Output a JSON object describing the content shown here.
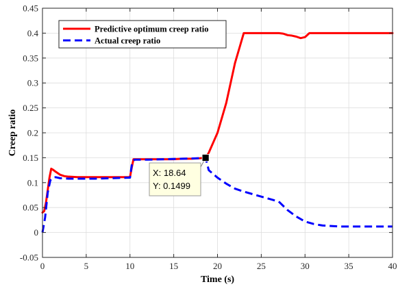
{
  "chart_data": {
    "type": "line",
    "title": "",
    "xlabel": "Time (s)",
    "ylabel": "Creep ratio",
    "xlim": [
      0,
      40
    ],
    "ylim": [
      -0.05,
      0.45
    ],
    "xticks": [
      "0",
      "5",
      "10",
      "15",
      "20",
      "25",
      "30",
      "35",
      "40"
    ],
    "xtick_values": [
      0,
      5,
      10,
      15,
      20,
      25,
      30,
      35,
      40
    ],
    "yticks": [
      "-0.05",
      "0",
      "0.05",
      "0.1",
      "0.15",
      "0.2",
      "0.25",
      "0.3",
      "0.35",
      "0.4",
      "0.45"
    ],
    "ytick_values": [
      -0.05,
      0,
      0.05,
      0.1,
      0.15,
      0.2,
      0.25,
      0.3,
      0.35,
      0.4,
      0.45
    ],
    "grid": true,
    "legend_position": "top-left",
    "series": [
      {
        "name": "Predictive optimum creep ratio",
        "color": "#ff0000",
        "style": "solid",
        "x": [
          0,
          0.2,
          0.4,
          0.6,
          0.8,
          1.0,
          1.2,
          1.5,
          2.0,
          2.5,
          3.0,
          4.0,
          5.0,
          6.0,
          8.0,
          9.5,
          10.0,
          10.2,
          10.4,
          11.0,
          12.0,
          13.0,
          14.0,
          15.0,
          16.0,
          17.0,
          18.0,
          18.64,
          19.0,
          19.5,
          20.0,
          20.5,
          21.0,
          21.5,
          22.0,
          22.5,
          23.0,
          24.0,
          25.0,
          26.0,
          27.0,
          27.5,
          28.0,
          28.5,
          29.0,
          29.5,
          30.0,
          30.5,
          31.0,
          33.0,
          35.0,
          37.0,
          40.0
        ],
        "y": [
          0.04,
          0.043,
          0.06,
          0.085,
          0.11,
          0.128,
          0.126,
          0.122,
          0.116,
          0.113,
          0.112,
          0.111,
          0.111,
          0.111,
          0.111,
          0.111,
          0.111,
          0.13,
          0.147,
          0.147,
          0.147,
          0.147,
          0.147,
          0.147,
          0.148,
          0.148,
          0.149,
          0.1499,
          0.16,
          0.18,
          0.2,
          0.23,
          0.26,
          0.3,
          0.34,
          0.37,
          0.4,
          0.4,
          0.4,
          0.4,
          0.4,
          0.399,
          0.396,
          0.395,
          0.393,
          0.39,
          0.392,
          0.4,
          0.4,
          0.4,
          0.4,
          0.4,
          0.4
        ]
      },
      {
        "name": "Actual creep ratio",
        "color": "#0000ff",
        "style": "dashed",
        "x": [
          0,
          0.3,
          0.6,
          0.9,
          1.2,
          1.5,
          2.0,
          3.0,
          4.0,
          5.0,
          6.0,
          8.0,
          10.0,
          10.2,
          10.5,
          11.0,
          12.0,
          14.0,
          16.0,
          18.0,
          18.64,
          19.0,
          20.0,
          21.0,
          22.0,
          23.0,
          24.0,
          25.0,
          26.0,
          27.0,
          28.0,
          29.0,
          30.0,
          31.0,
          32.0,
          34.0,
          36.0,
          38.0,
          40.0
        ],
        "y": [
          0.0,
          0.03,
          0.08,
          0.105,
          0.11,
          0.111,
          0.109,
          0.108,
          0.108,
          0.108,
          0.108,
          0.109,
          0.11,
          0.135,
          0.146,
          0.146,
          0.146,
          0.147,
          0.148,
          0.149,
          0.1499,
          0.125,
          0.11,
          0.098,
          0.088,
          0.082,
          0.077,
          0.072,
          0.067,
          0.062,
          0.045,
          0.032,
          0.022,
          0.017,
          0.014,
          0.012,
          0.012,
          0.012,
          0.012
        ]
      }
    ],
    "datatip": {
      "x": 18.64,
      "y": 0.1499,
      "x_label": "X: 18.64",
      "y_label": "Y: 0.1499"
    }
  }
}
